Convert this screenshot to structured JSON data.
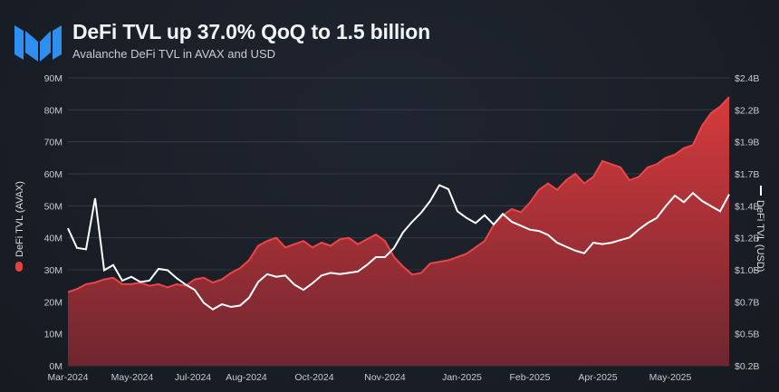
{
  "header": {
    "title": "DeFi TVL up 37.0% QoQ to 1.5 billion",
    "subtitle": "Avalanche DeFi TVL in AVAX and USD",
    "logo": "messari-logo",
    "logo_color": "#2f8ff0"
  },
  "chart_data": {
    "type": "area+line",
    "title": "DeFi TVL up 37.0% QoQ to 1.5 billion",
    "subtitle": "Avalanche DeFi TVL in AVAX and USD",
    "x_ticks": [
      "Mar-2024",
      "May-2024",
      "Jul-2024",
      "Aug-2024",
      "Oct-2024",
      "Nov-2024",
      "Jan-2025",
      "Feb-2025",
      "Apr-2025",
      "May-2025"
    ],
    "y_left": {
      "label": "DeFi TVL (AVAX)",
      "range": [
        0,
        90
      ],
      "ticks": [
        "0M",
        "10M",
        "20M",
        "30M",
        "40M",
        "50M",
        "60M",
        "70M",
        "80M",
        "90M"
      ]
    },
    "y_right": {
      "label": "DeFi TVL (USD)",
      "range": [
        0.2,
        2.4
      ],
      "ticks": [
        "$0.2B",
        "$0.5B",
        "$0.7B",
        "$1.0B",
        "$1.2B",
        "$1.4B",
        "$1.7B",
        "$1.9B",
        "$2.2B",
        "$2.4B"
      ]
    },
    "grid": true,
    "legend": "axis-labels",
    "series": [
      {
        "name": "DeFi TVL (AVAX)",
        "type": "area",
        "axis": "left",
        "unit": "M AVAX",
        "color": "#e8403f",
        "values": [
          23,
          24,
          25.5,
          26,
          27,
          27.5,
          25.5,
          25.5,
          26,
          25,
          25.5,
          24.5,
          25.5,
          25,
          27,
          27.5,
          26,
          27,
          29,
          30.5,
          33,
          37.5,
          39,
          40,
          37,
          38,
          39,
          37,
          38.5,
          37.5,
          39.5,
          40,
          38,
          39.5,
          41,
          39,
          34,
          31,
          28.5,
          29,
          32,
          32.5,
          33,
          34,
          35,
          37,
          39,
          44,
          47,
          49,
          48,
          51,
          55,
          57,
          55,
          58,
          60,
          57,
          59,
          64,
          63,
          62,
          58,
          59,
          62,
          63,
          65,
          66,
          68,
          69,
          75,
          79,
          81,
          84
        ]
      },
      {
        "name": "DeFi TVL (USD)",
        "type": "line",
        "axis": "right",
        "unit": "B USD",
        "color": "#ffffff",
        "values": [
          1.25,
          1.1,
          1.09,
          1.48,
          0.93,
          0.97,
          0.85,
          0.88,
          0.84,
          0.85,
          0.94,
          0.93,
          0.87,
          0.82,
          0.78,
          0.68,
          0.63,
          0.67,
          0.65,
          0.66,
          0.72,
          0.84,
          0.9,
          0.88,
          0.89,
          0.82,
          0.78,
          0.83,
          0.89,
          0.91,
          0.9,
          0.91,
          0.92,
          0.97,
          1.03,
          1.03,
          1.1,
          1.22,
          1.3,
          1.37,
          1.46,
          1.58,
          1.55,
          1.38,
          1.33,
          1.29,
          1.35,
          1.28,
          1.36,
          1.3,
          1.27,
          1.24,
          1.23,
          1.2,
          1.14,
          1.11,
          1.08,
          1.06,
          1.14,
          1.13,
          1.14,
          1.16,
          1.18,
          1.24,
          1.29,
          1.33,
          1.42,
          1.5,
          1.45,
          1.52,
          1.46,
          1.42,
          1.38,
          1.51
        ]
      }
    ]
  }
}
